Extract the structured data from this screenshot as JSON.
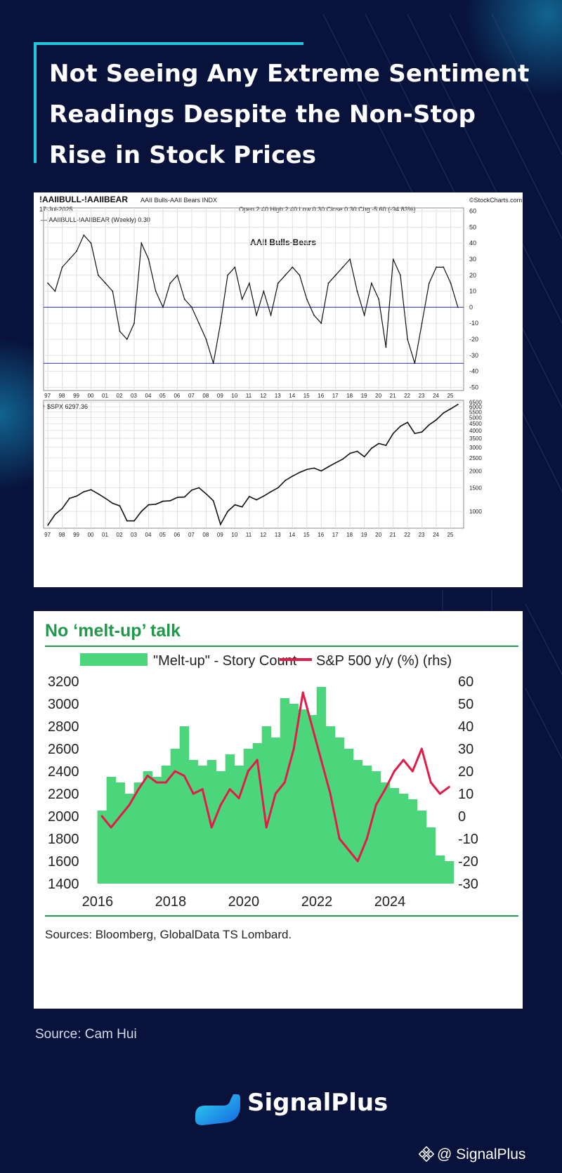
{
  "page": {
    "title": "Not Seeing Any Extreme Sentiment Readings Despite the Non-Stop Rise in Stock Prices",
    "source": "Source: Cam Hui",
    "brand": "SignalPlus",
    "handle": "@ SignalPlus",
    "colors": {
      "background": "#08123a",
      "accent": "#22c7e0"
    }
  },
  "chart_data": [
    {
      "type": "line",
      "header": {
        "symbol": "!AAIIBULL-!AAIIBEAR",
        "description": "AAII Bulls-AAII Bears INDX",
        "date": "17-Jul-2025",
        "watermark": "©StockCharts.com",
        "quote": "Open 2.40  High 2.40  Low 0.30  Close 0.30  Chg -5.60 (-94.83%)",
        "legend": "—!AAIIBULL-!AAIIBEAR (Weekly) 0.30"
      },
      "title": "AAII Bulls-Bears",
      "x_tick_labels": [
        "97",
        "98",
        "99",
        "00",
        "01",
        "02",
        "03",
        "04",
        "05",
        "06",
        "07",
        "08",
        "09",
        "10",
        "11",
        "12",
        "13",
        "14",
        "15",
        "16",
        "17",
        "18",
        "19",
        "20",
        "21",
        "22",
        "23",
        "24",
        "25"
      ],
      "y_tick_labels": [
        "60",
        "50",
        "40",
        "30",
        "20",
        "10",
        "0",
        "-10",
        "-20",
        "-30",
        "-40",
        "-50"
      ],
      "ylim": [
        -52,
        62
      ],
      "reference_lines": [
        0,
        -35
      ],
      "x": [
        1997.0,
        1997.5,
        1998.0,
        1998.5,
        1999.0,
        1999.5,
        2000.0,
        2000.5,
        2001.0,
        2001.5,
        2002.0,
        2002.5,
        2003.0,
        2003.5,
        2004.0,
        2004.5,
        2005.0,
        2005.5,
        2006.0,
        2006.5,
        2007.0,
        2007.5,
        2008.0,
        2008.5,
        2009.0,
        2009.5,
        2010.0,
        2010.5,
        2011.0,
        2011.5,
        2012.0,
        2012.5,
        2013.0,
        2013.5,
        2014.0,
        2014.5,
        2015.0,
        2015.5,
        2016.0,
        2016.5,
        2017.0,
        2017.5,
        2018.0,
        2018.5,
        2019.0,
        2019.5,
        2020.0,
        2020.5,
        2021.0,
        2021.5,
        2022.0,
        2022.5,
        2023.0,
        2023.5,
        2024.0,
        2024.5,
        2025.0,
        2025.5
      ],
      "series": [
        {
          "values": [
            15,
            10,
            25,
            30,
            35,
            45,
            40,
            20,
            15,
            10,
            -15,
            -20,
            -10,
            40,
            30,
            10,
            0,
            15,
            20,
            5,
            0,
            -10,
            -20,
            -35,
            -10,
            20,
            25,
            5,
            15,
            -5,
            10,
            -5,
            15,
            20,
            25,
            20,
            5,
            -5,
            -10,
            15,
            20,
            25,
            30,
            10,
            -5,
            15,
            5,
            -25,
            30,
            20,
            -20,
            -35,
            -10,
            15,
            25,
            25,
            15,
            0
          ]
        },
        {
          "name": "$SPX",
          "last": "6297.36",
          "label": "↑ $SPX 6297.36",
          "y_tick_labels": [
            "6500",
            "6000",
            "5500",
            "5000",
            "4500",
            "4000",
            "3500",
            "3000",
            "2500",
            "2000",
            "1500",
            "1000"
          ],
          "ylim": [
            750,
            6700
          ],
          "log_scale": true,
          "values": [
            790,
            950,
            1050,
            1250,
            1300,
            1400,
            1450,
            1350,
            1250,
            1150,
            1100,
            850,
            850,
            1000,
            1120,
            1130,
            1190,
            1200,
            1270,
            1280,
            1440,
            1500,
            1350,
            1200,
            800,
            1000,
            1120,
            1080,
            1290,
            1220,
            1300,
            1400,
            1500,
            1700,
            1830,
            1950,
            2050,
            2100,
            2000,
            2150,
            2300,
            2450,
            2700,
            2800,
            2550,
            2950,
            3200,
            3100,
            3800,
            4300,
            4600,
            3800,
            3900,
            4400,
            4800,
            5400,
            5800,
            6250
          ]
        }
      ]
    },
    {
      "type": "bar",
      "title": "No ‘melt-up’ talk",
      "source": "Sources: Bloomberg, GlobalData TS Lombard.",
      "legend": "top",
      "x_tick_labels": [
        "2016",
        "2018",
        "2020",
        "2022",
        "2024"
      ],
      "y_tick_labels_left": [
        "3200",
        "3000",
        "2800",
        "2600",
        "2400",
        "2200",
        "2000",
        "1800",
        "1600",
        "1400"
      ],
      "y_tick_labels_right": [
        "60",
        "50",
        "40",
        "30",
        "20",
        "10",
        "0",
        "-10",
        "-20",
        "-30"
      ],
      "ylim": [
        1400,
        3200
      ],
      "ylim_right": [
        -30,
        60
      ],
      "x": [
        2016.0,
        2016.25,
        2016.5,
        2016.75,
        2017.0,
        2017.25,
        2017.5,
        2017.75,
        2018.0,
        2018.25,
        2018.5,
        2018.75,
        2019.0,
        2019.25,
        2019.5,
        2019.75,
        2020.0,
        2020.25,
        2020.5,
        2020.75,
        2021.0,
        2021.25,
        2021.5,
        2021.75,
        2022.0,
        2022.25,
        2022.5,
        2022.75,
        2023.0,
        2023.25,
        2023.5,
        2023.75,
        2024.0,
        2024.25,
        2024.5,
        2024.75,
        2025.0,
        2025.25,
        2025.5
      ],
      "series": [
        {
          "name": "\"Melt-up\" - Story Count",
          "color": "#4cd67c",
          "values": [
            2050,
            2350,
            2300,
            2200,
            2300,
            2400,
            2350,
            2450,
            2600,
            2800,
            2500,
            2450,
            2500,
            2400,
            2550,
            2450,
            2600,
            2650,
            2800,
            2700,
            3050,
            3000,
            2950,
            2900,
            3150,
            2800,
            2700,
            2600,
            2500,
            2450,
            2400,
            2300,
            2250,
            2200,
            2150,
            2050,
            1900,
            1650,
            1600
          ]
        },
        {
          "name": "S&P 500 y/y (%) (rhs)",
          "color": "#e31b48",
          "values": [
            0,
            -5,
            0,
            5,
            12,
            18,
            15,
            15,
            20,
            18,
            10,
            12,
            -5,
            5,
            12,
            8,
            20,
            25,
            -5,
            10,
            15,
            30,
            55,
            40,
            25,
            10,
            -10,
            -15,
            -20,
            -10,
            5,
            12,
            20,
            25,
            20,
            30,
            15,
            10,
            13
          ]
        }
      ]
    }
  ]
}
